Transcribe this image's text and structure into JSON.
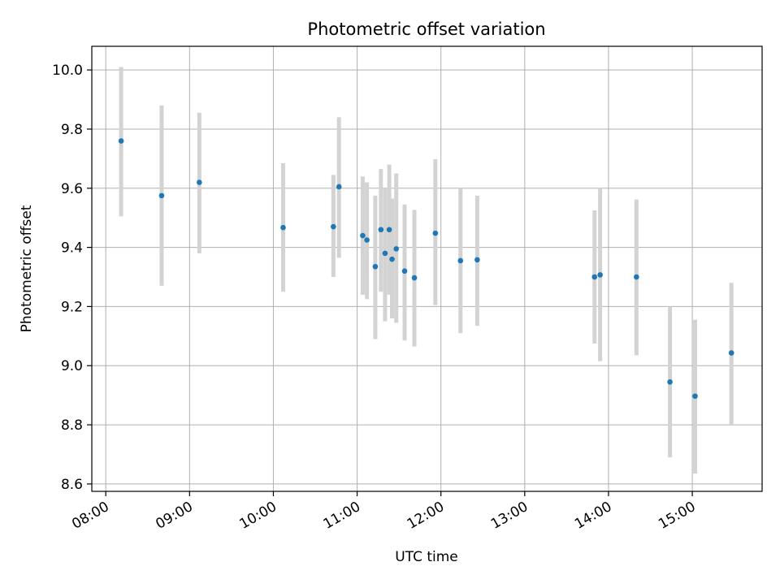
{
  "chart_data": {
    "type": "scatter",
    "title": "Photometric offset variation",
    "xlabel": "UTC time",
    "ylabel": "Photometric offset",
    "x_axis": {
      "kind": "time",
      "range": [
        "07:50",
        "15:50"
      ],
      "ticks": [
        "08:00",
        "09:00",
        "10:00",
        "11:00",
        "12:00",
        "13:00",
        "14:00",
        "15:00"
      ]
    },
    "y_axis": {
      "range": [
        8.575,
        10.08
      ],
      "ticks": [
        "8.6",
        "8.8",
        "9.0",
        "9.2",
        "9.4",
        "9.6",
        "9.8",
        "10.0"
      ]
    },
    "grid": true,
    "point_color": "#1f77b4",
    "errorbar_color": "#d3d3d3",
    "series": [
      {
        "points": [
          {
            "x": "08:11",
            "y": 9.76,
            "ylo": 9.505,
            "yhi": 10.01
          },
          {
            "x": "08:40",
            "y": 9.575,
            "ylo": 9.27,
            "yhi": 9.88
          },
          {
            "x": "09:07",
            "y": 9.62,
            "ylo": 9.38,
            "yhi": 9.855
          },
          {
            "x": "10:07",
            "y": 9.467,
            "ylo": 9.25,
            "yhi": 9.685
          },
          {
            "x": "10:43",
            "y": 9.47,
            "ylo": 9.3,
            "yhi": 9.645
          },
          {
            "x": "10:47",
            "y": 9.605,
            "ylo": 9.365,
            "yhi": 9.84
          },
          {
            "x": "11:04",
            "y": 9.44,
            "ylo": 9.24,
            "yhi": 9.64
          },
          {
            "x": "11:07",
            "y": 9.425,
            "ylo": 9.225,
            "yhi": 9.62
          },
          {
            "x": "11:13",
            "y": 9.335,
            "ylo": 9.09,
            "yhi": 9.575
          },
          {
            "x": "11:17",
            "y": 9.46,
            "ylo": 9.25,
            "yhi": 9.665
          },
          {
            "x": "11:20",
            "y": 9.38,
            "ylo": 9.15,
            "yhi": 9.6
          },
          {
            "x": "11:23",
            "y": 9.46,
            "ylo": 9.24,
            "yhi": 9.68
          },
          {
            "x": "11:25",
            "y": 9.36,
            "ylo": 9.16,
            "yhi": 9.565
          },
          {
            "x": "11:28",
            "y": 9.395,
            "ylo": 9.145,
            "yhi": 9.65
          },
          {
            "x": "11:34",
            "y": 9.32,
            "ylo": 9.085,
            "yhi": 9.545
          },
          {
            "x": "11:41",
            "y": 9.297,
            "ylo": 9.065,
            "yhi": 9.527
          },
          {
            "x": "11:56",
            "y": 9.448,
            "ylo": 9.205,
            "yhi": 9.698
          },
          {
            "x": "12:14",
            "y": 9.355,
            "ylo": 9.11,
            "yhi": 9.6
          },
          {
            "x": "12:26",
            "y": 9.358,
            "ylo": 9.135,
            "yhi": 9.575
          },
          {
            "x": "13:50",
            "y": 9.3,
            "ylo": 9.075,
            "yhi": 9.525
          },
          {
            "x": "13:54",
            "y": 9.307,
            "ylo": 9.015,
            "yhi": 9.6
          },
          {
            "x": "14:20",
            "y": 9.3,
            "ylo": 9.035,
            "yhi": 9.562
          },
          {
            "x": "14:44",
            "y": 8.945,
            "ylo": 8.69,
            "yhi": 9.2
          },
          {
            "x": "15:02",
            "y": 8.897,
            "ylo": 8.635,
            "yhi": 9.155
          },
          {
            "x": "15:28",
            "y": 9.043,
            "ylo": 8.8,
            "yhi": 9.28
          }
        ]
      }
    ]
  }
}
